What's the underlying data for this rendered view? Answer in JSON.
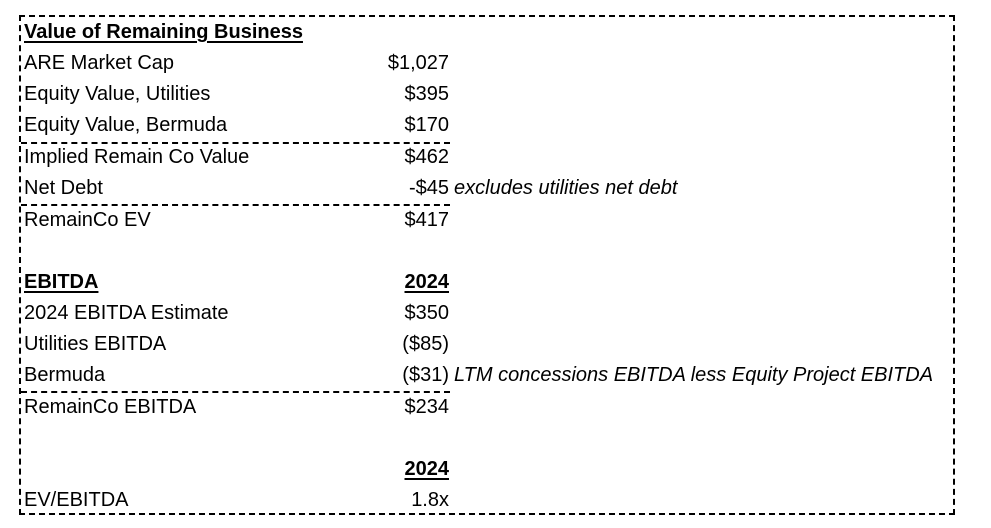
{
  "section1": {
    "title": "Value of Remaining Business",
    "rows": [
      {
        "label": "ARE Market Cap",
        "value": "$1,027"
      },
      {
        "label": "Equity Value, Utilities",
        "value": "$395"
      },
      {
        "label": "Equity Value, Bermuda",
        "value": "$170"
      },
      {
        "label": "Implied Remain Co Value",
        "value": "$462"
      },
      {
        "label": "Net Debt",
        "value": "-$45",
        "note": "excludes utilities net debt"
      },
      {
        "label": "RemainCo EV",
        "value": "$417"
      }
    ]
  },
  "section2": {
    "title": "EBITDA",
    "year": "2024",
    "rows": [
      {
        "label": "2024 EBITDA Estimate",
        "value": "$350"
      },
      {
        "label": "Utilities EBITDA",
        "value": "($85)"
      },
      {
        "label": "Bermuda",
        "value": "($31)",
        "note": "LTM concessions EBITDA less Equity Project EBITDA"
      },
      {
        "label": "RemainCo EBITDA",
        "value": "$234"
      }
    ]
  },
  "section3": {
    "year": "2024",
    "rows": [
      {
        "label": "EV/EBITDA",
        "value": "1.8x"
      }
    ]
  }
}
